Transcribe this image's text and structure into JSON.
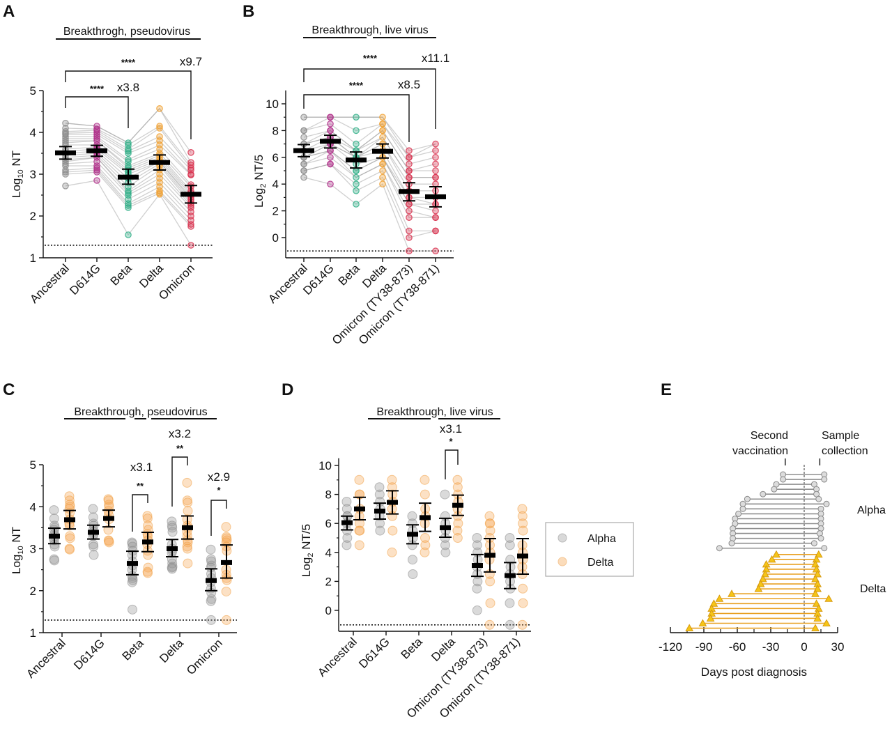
{
  "chart_data": [
    {
      "id": "A",
      "type": "scatter",
      "panel_label": "A",
      "title": "Breakthrogh, pseudovirus",
      "xlabel": "",
      "ylabel": "Log10 NT",
      "ylim": [
        1,
        5
      ],
      "yticks": [
        1,
        2,
        3,
        4,
        5
      ],
      "detection_limit": 1.3,
      "categories": [
        "Ancestral",
        "D614G",
        "Beta",
        "Delta",
        "Omicron"
      ],
      "colors": [
        "#8c8c8c",
        "#b0308a",
        "#2fae86",
        "#f0a030",
        "#d8334f"
      ],
      "paired_lines": true,
      "values": [
        [
          4.22,
          4.1,
          4.02,
          3.98,
          3.95,
          3.9,
          3.85,
          3.8,
          3.75,
          3.7,
          3.6,
          3.55,
          3.5,
          3.45,
          3.4,
          3.35,
          3.3,
          3.25,
          3.2,
          3.1,
          3.05,
          3.0,
          2.72
        ],
        [
          4.15,
          4.08,
          4.05,
          4.0,
          3.95,
          3.9,
          3.85,
          3.8,
          3.7,
          3.65,
          3.6,
          3.55,
          3.5,
          3.45,
          3.4,
          3.3,
          3.2,
          3.15,
          3.1,
          3.05,
          2.85
        ],
        [
          3.75,
          3.7,
          3.6,
          3.55,
          3.5,
          3.35,
          3.3,
          3.2,
          3.15,
          3.1,
          3.05,
          3.0,
          2.9,
          2.8,
          2.7,
          2.6,
          2.55,
          2.5,
          2.4,
          2.3,
          2.25,
          2.2,
          1.55
        ],
        [
          4.57,
          4.15,
          4.1,
          3.9,
          3.8,
          3.7,
          3.6,
          3.5,
          3.45,
          3.4,
          3.35,
          3.3,
          3.25,
          3.2,
          3.1,
          3.0,
          2.9,
          2.8,
          2.7,
          2.6,
          2.55,
          2.52
        ],
        [
          3.52,
          3.28,
          3.22,
          3.15,
          3.1,
          3.0,
          2.98,
          2.75,
          2.7,
          2.6,
          2.55,
          2.5,
          2.45,
          2.4,
          2.35,
          2.3,
          2.25,
          2.2,
          2.1,
          2.0,
          1.9,
          1.8,
          1.75,
          1.3
        ]
      ],
      "means": [
        3.51,
        3.56,
        2.93,
        3.28,
        2.52
      ],
      "ci_low": [
        3.36,
        3.43,
        2.76,
        3.1,
        2.31
      ],
      "ci_high": [
        3.66,
        3.69,
        3.12,
        3.46,
        2.73
      ],
      "comparisons": [
        {
          "from": "Ancestral",
          "to": "Beta",
          "stars": "****",
          "fold": "x3.8"
        },
        {
          "from": "Ancestral",
          "to": "Omicron",
          "stars": "****",
          "fold": "x9.7"
        }
      ]
    },
    {
      "id": "B",
      "type": "scatter",
      "panel_label": "B",
      "title": "Breakthrough, live virus",
      "xlabel": "",
      "ylabel": "Log2 NT/5",
      "ylim": [
        -1,
        10
      ],
      "yticks": [
        0,
        2,
        4,
        6,
        8,
        10
      ],
      "detection_limit": -1,
      "categories": [
        "Ancestral",
        "D614G",
        "Beta",
        "Delta",
        "Omicron (TY38-873)",
        "Omicron (TY38-871)"
      ],
      "colors": [
        "#8c8c8c",
        "#b0308a",
        "#2fae86",
        "#f0a030",
        "#d8334f",
        "#d8334f"
      ],
      "paired_lines": true,
      "values": [
        [
          9,
          8,
          8,
          7.5,
          7,
          7,
          6.5,
          6.5,
          6,
          6,
          6,
          5.5,
          5.5,
          5,
          5,
          4.5
        ],
        [
          9,
          9,
          8.5,
          8,
          8,
          7.5,
          7.5,
          7,
          7,
          7,
          6.5,
          6.5,
          6,
          5.5,
          5.5,
          4
        ],
        [
          9,
          8,
          7,
          6.5,
          6.5,
          6,
          6,
          6,
          5.5,
          5,
          5,
          4.5,
          4,
          3.5,
          2.5
        ],
        [
          9,
          8.5,
          8.5,
          8,
          8,
          7.5,
          7,
          7,
          6.5,
          6,
          6,
          5.5,
          5.5,
          5,
          4.5,
          4
        ],
        [
          6.5,
          6,
          6,
          5.5,
          5,
          5,
          4.5,
          4.5,
          4,
          3.5,
          3,
          3,
          2.5,
          2.5,
          2,
          1.5,
          0.5,
          0,
          -1
        ],
        [
          7,
          6.5,
          6,
          5.5,
          5,
          4.5,
          4.5,
          4,
          3.5,
          3,
          2.5,
          2.5,
          2,
          1.5,
          1.5,
          0.5,
          0.5,
          -1
        ]
      ],
      "means": [
        6.5,
        7.2,
        5.8,
        6.45,
        3.45,
        3.05
      ],
      "ci_low": [
        6.05,
        6.7,
        5.2,
        5.95,
        2.75,
        2.3
      ],
      "ci_high": [
        6.95,
        7.65,
        6.4,
        7.0,
        4.1,
        3.8
      ],
      "comparisons": [
        {
          "from": "Ancestral",
          "to": "Omicron (TY38-873)",
          "stars": "****",
          "fold": "x8.5"
        },
        {
          "from": "Ancestral",
          "to": "Omicron (TY38-871)",
          "stars": "****",
          "fold": "x11.1"
        }
      ]
    },
    {
      "id": "C",
      "type": "scatter",
      "panel_label": "C",
      "title": "Breakthrough, pseudovirus",
      "xlabel": "",
      "ylabel": "Log10 NT",
      "ylim": [
        1,
        5
      ],
      "yticks": [
        1,
        2,
        3,
        4,
        5
      ],
      "detection_limit": 1.3,
      "categories": [
        "Ancestral",
        "D614G",
        "Beta",
        "Delta",
        "Omicron"
      ],
      "series": [
        {
          "name": "Alpha",
          "color": "#9a9a9a",
          "values": [
            [
              3.92,
              3.72,
              3.55,
              3.5,
              3.45,
              3.35,
              3.3,
              3.25,
              3.2,
              3.1,
              3.05,
              2.75,
              2.72
            ],
            [
              3.95,
              3.75,
              3.6,
              3.55,
              3.45,
              3.4,
              3.35,
              3.3,
              3.1,
              3.05,
              2.85
            ],
            [
              3.15,
              3.12,
              3.05,
              2.95,
              2.85,
              2.7,
              2.6,
              2.5,
              2.35,
              2.3,
              2.25,
              2.2,
              1.55
            ],
            [
              3.65,
              3.55,
              3.5,
              3.4,
              3.1,
              3.0,
              2.95,
              2.9,
              2.75,
              2.65,
              2.57,
              2.55,
              2.52
            ],
            [
              2.98,
              2.75,
              2.7,
              2.6,
              2.55,
              2.4,
              2.3,
              2.2,
              2.05,
              1.95,
              1.8,
              1.75,
              1.3
            ]
          ],
          "means": [
            3.3,
            3.39,
            2.65,
            3.0,
            2.24
          ],
          "ci_low": [
            3.12,
            3.23,
            2.38,
            2.81,
            2.0
          ],
          "ci_high": [
            3.49,
            3.56,
            2.94,
            3.22,
            2.52
          ]
        },
        {
          "name": "Delta",
          "color": "#f0a030",
          "values": [
            [
              4.25,
              4.15,
              4.05,
              4.0,
              3.95,
              3.85,
              3.7,
              3.6,
              3.55,
              3.3,
              3.25,
              3.0,
              2.98
            ],
            [
              4.18,
              4.15,
              4.05,
              4.0,
              3.9,
              3.8,
              3.7,
              3.45,
              3.2,
              3.18,
              3.15
            ],
            [
              3.78,
              3.72,
              3.55,
              3.45,
              3.35,
              3.3,
              3.2,
              3.1,
              2.95,
              2.85,
              2.55,
              2.45,
              2.42
            ],
            [
              4.57,
              4.15,
              4.1,
              3.9,
              3.7,
              3.55,
              3.5,
              3.4,
              3.3,
              3.2,
              3.15,
              3.05,
              3.0,
              2.65
            ],
            [
              3.52,
              3.28,
              3.25,
              3.2,
              3.15,
              3.05,
              2.95,
              2.5,
              2.38,
              2.3,
              2.25,
              1.98,
              1.3
            ]
          ],
          "means": [
            3.69,
            3.72,
            3.16,
            3.5,
            2.67
          ],
          "ci_low": [
            3.47,
            3.52,
            2.93,
            3.23,
            2.3
          ],
          "ci_high": [
            3.91,
            3.92,
            3.39,
            3.78,
            3.09
          ]
        }
      ],
      "comparisons": [
        {
          "category": "Beta",
          "stars": "**",
          "fold": "x3.1"
        },
        {
          "category": "Delta",
          "stars": "**",
          "fold": "x3.2"
        },
        {
          "category": "Omicron",
          "stars": "*",
          "fold": "x2.9"
        }
      ]
    },
    {
      "id": "D",
      "type": "scatter",
      "panel_label": "D",
      "title": "Breakthrough, live virus",
      "xlabel": "",
      "ylabel": "Log2 NT/5",
      "ylim": [
        -1,
        10
      ],
      "yticks": [
        0,
        2,
        4,
        6,
        8,
        10
      ],
      "detection_limit": -1,
      "categories": [
        "Ancestral",
        "D614G",
        "Beta",
        "Delta",
        "Omicron (TY38-873)",
        "Omicron (TY38-871)"
      ],
      "series": [
        {
          "name": "Alpha",
          "color": "#9a9a9a",
          "values": [
            [
              7.5,
              7,
              6.5,
              6.5,
              6,
              5.5,
              5,
              4.5
            ],
            [
              8.5,
              8,
              7.5,
              7,
              6.5,
              6,
              5.5
            ],
            [
              6.5,
              6,
              5.5,
              5,
              4.5,
              3.5,
              2.5
            ],
            [
              8,
              6.5,
              6,
              5.5,
              5,
              4.5,
              4
            ],
            [
              5,
              4.5,
              4,
              3.5,
              3,
              2.5,
              2,
              1.5,
              0
            ],
            [
              5,
              4.5,
              3.5,
              3,
              2.5,
              2,
              1.5,
              0.5,
              -1
            ]
          ],
          "means": [
            6.05,
            6.85,
            5.25,
            5.7,
            3.1,
            2.4
          ],
          "ci_low": [
            5.55,
            6.3,
            4.6,
            5.05,
            2.35,
            1.5
          ],
          "ci_high": [
            6.5,
            7.4,
            5.9,
            6.35,
            3.85,
            3.3
          ]
        },
        {
          "name": "Delta",
          "color": "#f0a030",
          "values": [
            [
              9,
              8,
              8,
              7,
              6.5,
              6,
              5.5,
              5.5,
              4.5
            ],
            [
              9,
              8.5,
              8,
              7.5,
              7,
              6.5,
              5.5,
              4
            ],
            [
              9,
              8,
              7,
              6.5,
              6,
              5,
              4.5,
              4
            ],
            [
              9,
              8.5,
              8,
              7.5,
              7,
              6.5,
              6,
              5.5,
              5
            ],
            [
              6.5,
              6,
              6,
              5.5,
              5,
              4.5,
              4,
              3.5,
              2.5,
              2,
              0.5,
              -1
            ],
            [
              7,
              6.5,
              6,
              5.5,
              4.5,
              4,
              3.5,
              3,
              2.5,
              1.5,
              0.5,
              -1
            ]
          ],
          "means": [
            7.0,
            7.45,
            6.4,
            7.25,
            3.8,
            3.75
          ],
          "ci_low": [
            6.25,
            6.65,
            5.45,
            6.55,
            2.65,
            2.5
          ],
          "ci_high": [
            7.8,
            8.25,
            7.4,
            7.95,
            4.95,
            4.95
          ]
        }
      ],
      "comparisons": [
        {
          "category": "Delta",
          "stars": "*",
          "fold": "x3.1"
        }
      ],
      "legend": {
        "position": "right",
        "entries": [
          "Alpha",
          "Delta"
        ]
      }
    },
    {
      "id": "E",
      "type": "line",
      "panel_label": "E",
      "title": "",
      "xlabel": "Days post diagnosis",
      "ylabel": "",
      "xlim": [
        -120,
        30
      ],
      "xticks": [
        -120,
        -90,
        -60,
        -30,
        0,
        30
      ],
      "reference_line": 0,
      "annotations": [
        "Second vaccination",
        "Sample collection"
      ],
      "annotation_positions_days": [
        -17,
        14
      ],
      "series": [
        {
          "name": "Alpha",
          "color": "#8f8f8f",
          "marker": "circle",
          "intervals": [
            [
              -19,
              18
            ],
            [
              -19,
              18
            ],
            [
              -25,
              9
            ],
            [
              -27,
              11
            ],
            [
              -37,
              11
            ],
            [
              -51,
              13
            ],
            [
              -55,
              20
            ],
            [
              -55,
              15
            ],
            [
              -59,
              15
            ],
            [
              -62,
              15
            ],
            [
              -62,
              15
            ],
            [
              -64,
              15
            ],
            [
              -64,
              14
            ],
            [
              -64,
              15
            ],
            [
              -65,
              9
            ],
            [
              -76,
              18
            ]
          ]
        },
        {
          "name": "Delta",
          "color": "#e8a020",
          "marker": "triangle",
          "intervals": [
            [
              -25,
              13
            ],
            [
              -29,
              11
            ],
            [
              -34,
              10
            ],
            [
              -34,
              11
            ],
            [
              -35,
              12
            ],
            [
              -37,
              10
            ],
            [
              -39,
              12
            ],
            [
              -41,
              12
            ],
            [
              -65,
              10
            ],
            [
              -76,
              22
            ],
            [
              -81,
              11
            ],
            [
              -83,
              13
            ],
            [
              -83,
              12
            ],
            [
              -84,
              12
            ],
            [
              -91,
              20
            ],
            [
              -103,
              10
            ]
          ]
        }
      ],
      "group_labels": [
        "Alpha",
        "Delta"
      ]
    }
  ]
}
